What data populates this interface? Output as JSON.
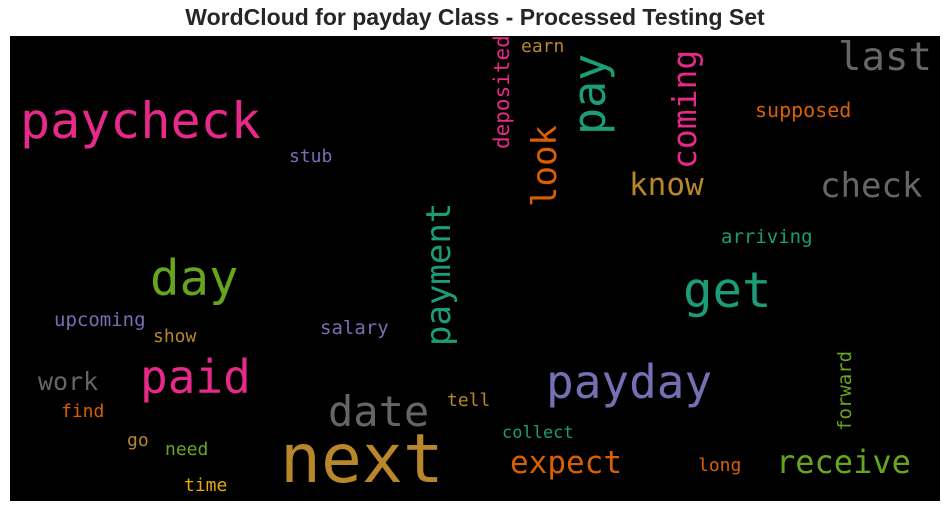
{
  "title": "WordCloud for payday Class - Processed Testing Set",
  "words": [
    {
      "text": "next",
      "color": "#b8862b"
    },
    {
      "text": "paycheck",
      "color": "#e7298a"
    },
    {
      "text": "payday",
      "color": "#7570b3"
    },
    {
      "text": "get",
      "color": "#1b9e77"
    },
    {
      "text": "day",
      "color": "#66a61e"
    },
    {
      "text": "paid",
      "color": "#e7298a"
    },
    {
      "text": "pay",
      "color": "#1b9e77"
    },
    {
      "text": "last",
      "color": "#666666"
    },
    {
      "text": "date",
      "color": "#666666"
    },
    {
      "text": "payment",
      "color": "#1b9e77"
    },
    {
      "text": "look",
      "color": "#d95f02"
    },
    {
      "text": "coming",
      "color": "#e7298a"
    },
    {
      "text": "check",
      "color": "#666666"
    },
    {
      "text": "know",
      "color": "#b8862b"
    },
    {
      "text": "receive",
      "color": "#66a61e"
    },
    {
      "text": "expect",
      "color": "#d95f02"
    },
    {
      "text": "work",
      "color": "#666666"
    },
    {
      "text": "deposited",
      "color": "#e7298a"
    },
    {
      "text": "supposed",
      "color": "#d95f02"
    },
    {
      "text": "arriving",
      "color": "#1b9e77"
    },
    {
      "text": "upcoming",
      "color": "#7570b3"
    },
    {
      "text": "salary",
      "color": "#7570b3"
    },
    {
      "text": "forward",
      "color": "#66a61e"
    },
    {
      "text": "stub",
      "color": "#7570b3"
    },
    {
      "text": "earn",
      "color": "#b8862b"
    },
    {
      "text": "show",
      "color": "#b8862b"
    },
    {
      "text": "find",
      "color": "#d95f02"
    },
    {
      "text": "tell",
      "color": "#b8862b"
    },
    {
      "text": "collect",
      "color": "#1b9e77"
    },
    {
      "text": "long",
      "color": "#d95f02"
    },
    {
      "text": "go",
      "color": "#b8862b"
    },
    {
      "text": "need",
      "color": "#66a61e"
    },
    {
      "text": "time",
      "color": "#e6ab02"
    }
  ]
}
